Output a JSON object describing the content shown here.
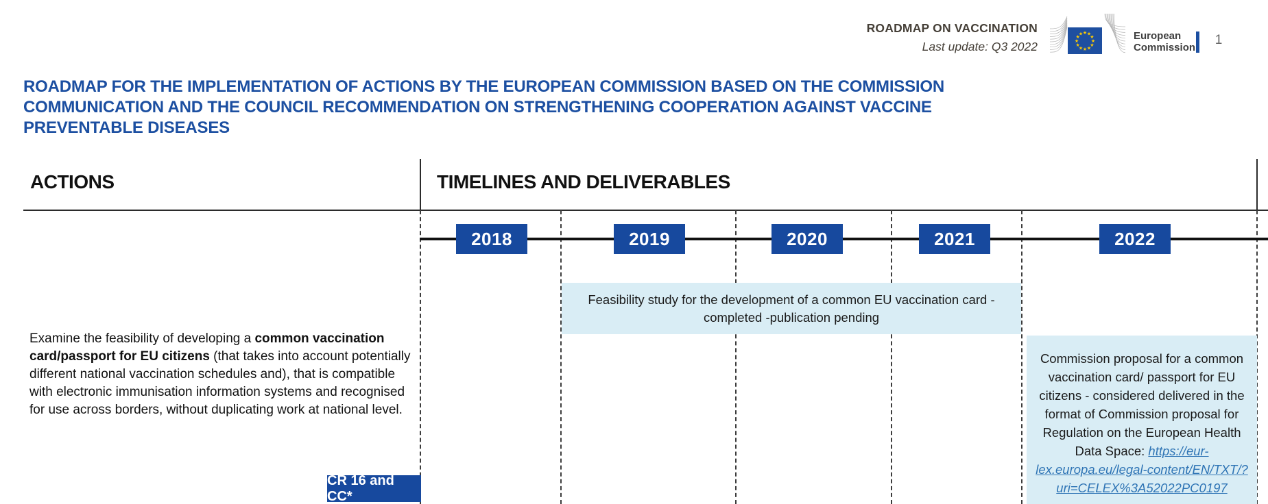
{
  "header": {
    "doc_label": "ROADMAP ON VACCINATION",
    "last_update": "Last update: Q3 2022",
    "logo": {
      "org_line1": "European",
      "org_line2": "Commission"
    },
    "page_number": "1"
  },
  "title": {
    "lines": [
      "ROADMAP FOR THE IMPLEMENTATION OF ACTIONS BY THE EUROPEAN COMMISSION BASED ON THE COMMISSION",
      "COMMUNICATION AND THE COUNCIL RECOMMENDATION ON STRENGTHENING COOPERATION AGAINST VACCINE",
      "PREVENTABLE DISEASES"
    ]
  },
  "columns": {
    "actions": "ACTIONS",
    "timelines": "TIMELINES AND DELIVERABLES"
  },
  "timeline": {
    "years": [
      "2018",
      "2019",
      "2020",
      "2021",
      "2022"
    ]
  },
  "action": {
    "text_before_bold": "Examine the feasibility of developing a ",
    "bold_text": "common vaccination card/passport for EU citizens",
    "text_after_bold": " (that takes into account potentially different national vaccination schedules and), that is compatible with electronic immunisation information systems and recognised for use across borders, without duplicating work at national level."
  },
  "deliverables": [
    {
      "years_span": "2019-2021",
      "text": "Feasibility study for the development of a common EU vaccination card - completed -publication pending"
    },
    {
      "years_span": "2022",
      "text_before_link": "Commission proposal for a common vaccination card/ passport for EU citizens - considered delivered in the format of Commission proposal for Regulation on the European Health Data Space: ",
      "link_text": "https://eur-lex.europa.eu/legal-content/EN/TXT/?uri=CELEX%3A52022PC0197"
    }
  ],
  "badge": {
    "label": "CR 16 and CC*"
  },
  "colors": {
    "title_blue": "#1c4fa1",
    "box_dark_blue": "#17499e",
    "deliverable_light_blue": "#d9edf5",
    "link_blue": "#2e74b5",
    "flag_blue": "#1e4fa0",
    "star_yellow": "#ffcc00"
  }
}
